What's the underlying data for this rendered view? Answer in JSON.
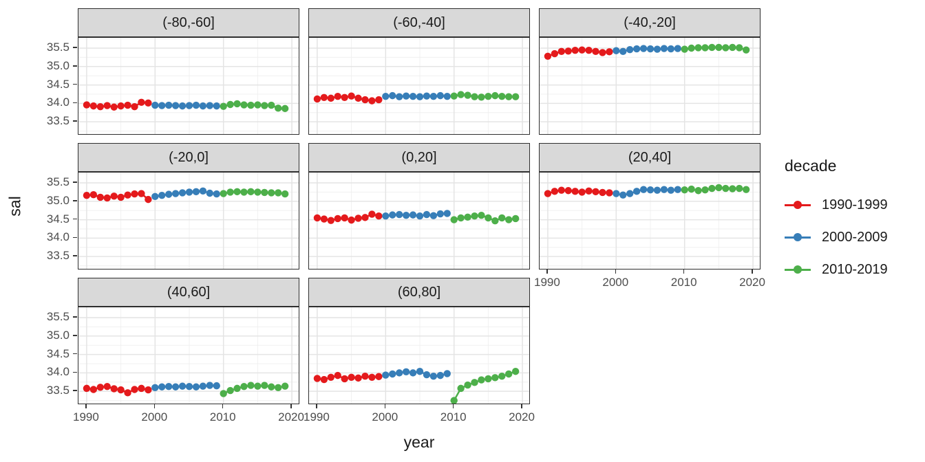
{
  "figure": {
    "y_axis_label": "sal",
    "x_axis_label": "year",
    "legend": {
      "title": "decade",
      "entries": [
        {
          "label": "1990-1999",
          "color": "#E41A1C"
        },
        {
          "label": "2000-2009",
          "color": "#377EB8"
        },
        {
          "label": "2010-2019",
          "color": "#4DAF4A"
        }
      ]
    }
  },
  "chart_data": {
    "type": "line",
    "title": "",
    "xlabel": "year",
    "ylabel": "sal",
    "grid": true,
    "legend_position": "right",
    "legend_title": "decade",
    "xlim": [
      1988.8,
      2021.2
    ],
    "ylim": [
      33.13,
      35.78
    ],
    "x_ticks": [
      1990,
      2000,
      2010,
      2020
    ],
    "x_minor_ticks": [
      1995,
      2005,
      2015
    ],
    "y_ticks": [
      33.5,
      34.0,
      34.5,
      35.0,
      35.5
    ],
    "y_tick_labels": [
      "33.5",
      "34.0",
      "34.5",
      "35.0",
      "35.5"
    ],
    "y_minor_ticks": [
      33.25,
      33.75,
      34.25,
      34.75,
      35.25,
      35.75
    ],
    "x": [
      1990,
      1991,
      1992,
      1993,
      1994,
      1995,
      1996,
      1997,
      1998,
      1999,
      2000,
      2001,
      2002,
      2003,
      2004,
      2005,
      2006,
      2007,
      2008,
      2009,
      2010,
      2011,
      2012,
      2013,
      2014,
      2015,
      2016,
      2017,
      2018,
      2019
    ],
    "series_names": [
      "1990-1999",
      "2000-2009",
      "2010-2019"
    ],
    "facets": [
      {
        "label": "(-80,-60]",
        "series": [
          {
            "name": "1990-1999",
            "color": "#E41A1C",
            "x_start": 1990,
            "values": [
              33.96,
              33.93,
              33.91,
              33.94,
              33.9,
              33.93,
              33.95,
              33.91,
              34.03,
              34.01
            ]
          },
          {
            "name": "2000-2009",
            "color": "#377EB8",
            "x_start": 2000,
            "values": [
              33.95,
              33.94,
              33.95,
              33.94,
              33.93,
              33.94,
              33.95,
              33.93,
              33.94,
              33.93
            ]
          },
          {
            "name": "2010-2019",
            "color": "#4DAF4A",
            "x_start": 2010,
            "values": [
              33.92,
              33.97,
              33.99,
              33.96,
              33.95,
              33.96,
              33.94,
              33.95,
              33.87,
              33.86
            ]
          }
        ]
      },
      {
        "label": "(-60,-40]",
        "series": [
          {
            "name": "1990-1999",
            "color": "#E41A1C",
            "x_start": 1990,
            "values": [
              34.12,
              34.16,
              34.14,
              34.19,
              34.16,
              34.2,
              34.14,
              34.1,
              34.07,
              34.1
            ]
          },
          {
            "name": "2000-2009",
            "color": "#377EB8",
            "x_start": 2000,
            "values": [
              34.19,
              34.21,
              34.18,
              34.2,
              34.19,
              34.18,
              34.2,
              34.19,
              34.21,
              34.19
            ]
          },
          {
            "name": "2010-2019",
            "color": "#4DAF4A",
            "x_start": 2010,
            "values": [
              34.2,
              34.24,
              34.22,
              34.18,
              34.17,
              34.19,
              34.21,
              34.19,
              34.18,
              34.18
            ]
          }
        ]
      },
      {
        "label": "(-40,-20]",
        "series": [
          {
            "name": "1990-1999",
            "color": "#E41A1C",
            "x_start": 1990,
            "values": [
              35.28,
              35.35,
              35.41,
              35.42,
              35.44,
              35.45,
              35.44,
              35.41,
              35.38,
              35.4
            ]
          },
          {
            "name": "2000-2009",
            "color": "#377EB8",
            "x_start": 2000,
            "values": [
              35.43,
              35.41,
              35.46,
              35.48,
              35.49,
              35.48,
              35.47,
              35.49,
              35.48,
              35.49
            ]
          },
          {
            "name": "2010-2019",
            "color": "#4DAF4A",
            "x_start": 2010,
            "values": [
              35.47,
              35.5,
              35.51,
              35.51,
              35.52,
              35.52,
              35.51,
              35.52,
              35.51,
              35.45
            ]
          }
        ]
      },
      {
        "label": "(-20,0]",
        "series": [
          {
            "name": "1990-1999",
            "color": "#E41A1C",
            "x_start": 1990,
            "values": [
              35.16,
              35.18,
              35.11,
              35.09,
              35.14,
              35.11,
              35.17,
              35.2,
              35.21,
              35.05
            ]
          },
          {
            "name": "2000-2009",
            "color": "#377EB8",
            "x_start": 2000,
            "values": [
              35.13,
              35.16,
              35.19,
              35.21,
              35.23,
              35.25,
              35.26,
              35.28,
              35.22,
              35.2
            ]
          },
          {
            "name": "2010-2019",
            "color": "#4DAF4A",
            "x_start": 2010,
            "values": [
              35.21,
              35.25,
              35.26,
              35.25,
              35.26,
              35.25,
              35.24,
              35.23,
              35.23,
              35.2
            ]
          }
        ]
      },
      {
        "label": "(0,20]",
        "series": [
          {
            "name": "1990-1999",
            "color": "#E41A1C",
            "x_start": 1990,
            "values": [
              34.55,
              34.52,
              34.48,
              34.53,
              34.55,
              34.49,
              34.54,
              34.56,
              34.65,
              34.6
            ]
          },
          {
            "name": "2000-2009",
            "color": "#377EB8",
            "x_start": 2000,
            "values": [
              34.6,
              34.63,
              34.64,
              34.62,
              34.63,
              34.6,
              34.64,
              34.61,
              34.66,
              34.67
            ]
          },
          {
            "name": "2010-2019",
            "color": "#4DAF4A",
            "x_start": 2010,
            "values": [
              34.5,
              34.55,
              34.57,
              34.6,
              34.62,
              34.55,
              34.47,
              34.55,
              34.5,
              34.53
            ]
          }
        ]
      },
      {
        "label": "(20,40]",
        "series": [
          {
            "name": "1990-1999",
            "color": "#E41A1C",
            "x_start": 1990,
            "values": [
              35.21,
              35.27,
              35.3,
              35.29,
              35.27,
              35.25,
              35.28,
              35.26,
              35.24,
              35.23
            ]
          },
          {
            "name": "2000-2009",
            "color": "#377EB8",
            "x_start": 2000,
            "values": [
              35.21,
              35.17,
              35.21,
              35.27,
              35.32,
              35.31,
              35.3,
              35.32,
              35.3,
              35.32
            ]
          },
          {
            "name": "2010-2019",
            "color": "#4DAF4A",
            "x_start": 2010,
            "values": [
              35.31,
              35.33,
              35.29,
              35.31,
              35.35,
              35.37,
              35.35,
              35.34,
              35.35,
              35.32
            ]
          }
        ]
      },
      {
        "label": "(40,60]",
        "series": [
          {
            "name": "1990-1999",
            "color": "#E41A1C",
            "x_start": 1990,
            "values": [
              33.58,
              33.55,
              33.61,
              33.63,
              33.57,
              33.54,
              33.46,
              33.55,
              33.58,
              33.54
            ]
          },
          {
            "name": "2000-2009",
            "color": "#377EB8",
            "x_start": 2000,
            "values": [
              33.6,
              33.62,
              33.63,
              33.62,
              33.64,
              33.63,
              33.62,
              33.64,
              33.66,
              33.65
            ]
          },
          {
            "name": "2010-2019",
            "color": "#4DAF4A",
            "x_start": 2010,
            "values": [
              33.44,
              33.52,
              33.58,
              33.63,
              33.66,
              33.64,
              33.66,
              33.62,
              33.6,
              33.64
            ]
          }
        ]
      },
      {
        "label": "(60,80]",
        "series": [
          {
            "name": "1990-1999",
            "color": "#E41A1C",
            "x_start": 1990,
            "values": [
              33.85,
              33.82,
              33.88,
              33.93,
              33.84,
              33.88,
              33.86,
              33.91,
              33.88,
              33.9
            ]
          },
          {
            "name": "2000-2009",
            "color": "#377EB8",
            "x_start": 2000,
            "values": [
              33.94,
              33.97,
              34.0,
              34.03,
              34.0,
              34.04,
              33.95,
              33.91,
              33.93,
              33.98
            ]
          },
          {
            "name": "2010-2019",
            "color": "#4DAF4A",
            "x_start": 2010,
            "values": [
              33.25,
              33.58,
              33.67,
              33.74,
              33.81,
              33.84,
              33.87,
              33.91,
              33.97,
              34.04
            ]
          }
        ]
      }
    ],
    "style": {
      "strip_bg": "#d9d9d9",
      "panel_border": "#2e2e2e",
      "major_grid": "#e4e4e4",
      "minor_grid": "#f0f0f0",
      "tick_text": "#4d4d4d"
    }
  }
}
